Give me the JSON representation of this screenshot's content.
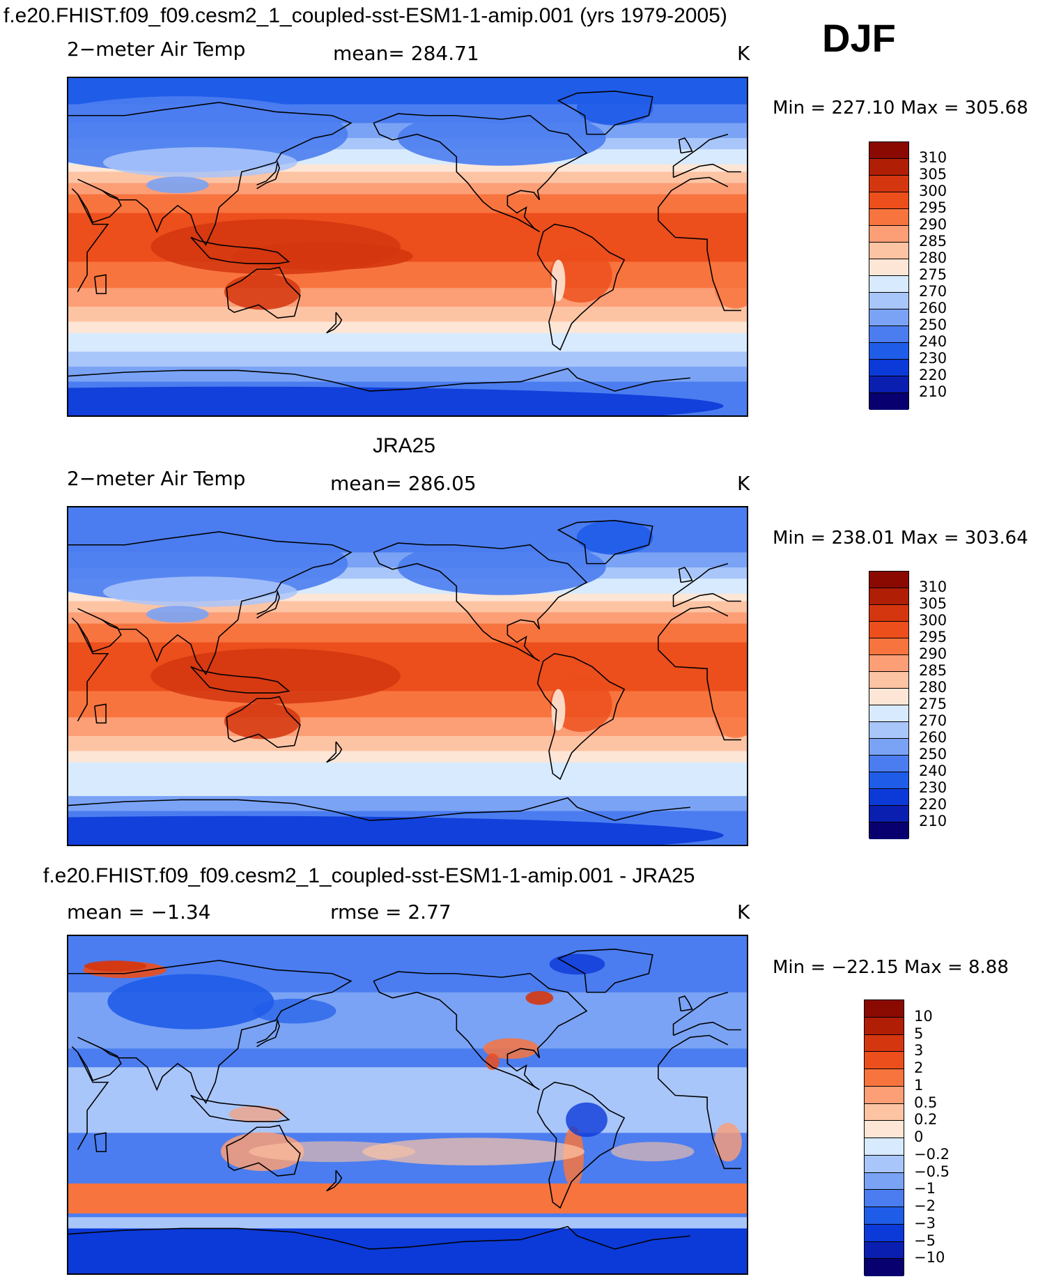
{
  "header": {
    "title": "f.e20.FHIST.f09_f09.cesm2_1_coupled-sst-ESM1-1-amip.001 (yrs 1979-2005)",
    "season": "DJF"
  },
  "colors": {
    "abs_scale": [
      "#08006e",
      "#0a1fb0",
      "#0c3ad8",
      "#1f5ce8",
      "#4b7df0",
      "#7aa3f5",
      "#a9c6fa",
      "#d8eafd",
      "#fde6d6",
      "#fdc4a4",
      "#fc9e76",
      "#f8743e",
      "#ec4e1c",
      "#d4360f",
      "#b01e06",
      "#8a0a02"
    ],
    "diff_scale": [
      "#08006e",
      "#0a1fb0",
      "#0c3ad8",
      "#1f5ce8",
      "#4b7df0",
      "#7aa3f5",
      "#a9c6fa",
      "#d8eafd",
      "#fde6d6",
      "#fdc4a4",
      "#fc9e76",
      "#f8743e",
      "#ec4e1c",
      "#d4360f",
      "#b01e06",
      "#8a0a02"
    ],
    "coast": "#000000"
  },
  "chart_data": [
    {
      "type": "heatmap",
      "title": "",
      "variable": "2−meter Air Temp",
      "stat": "mean=  284.71",
      "units": "K",
      "minmax": "Min  =  227.10  Max  =  305.68",
      "min": 227.1,
      "max": 305.68,
      "levels": [
        "310",
        "305",
        "300",
        "295",
        "290",
        "285",
        "280",
        "275",
        "270",
        "260",
        "250",
        "240",
        "230",
        "220",
        "210"
      ],
      "pattern": "model"
    },
    {
      "type": "heatmap",
      "title": "JRA25",
      "variable": "2−meter Air Temp",
      "stat": "mean=  286.05",
      "units": "K",
      "minmax": "Min  =  238.01  Max  =  303.64",
      "min": 238.01,
      "max": 303.64,
      "levels": [
        "310",
        "305",
        "300",
        "295",
        "290",
        "285",
        "280",
        "275",
        "270",
        "260",
        "250",
        "240",
        "230",
        "220",
        "210"
      ],
      "pattern": "obs"
    },
    {
      "type": "heatmap",
      "title": "f.e20.FHIST.f09_f09.cesm2_1_coupled-sst-ESM1-1-amip.001 - JRA25",
      "stat_mean": "mean  =    −1.34",
      "stat_rmse": "rmse  =     2.77",
      "units": "K",
      "minmax": "Min  =  −22.15  Max  =      8.88",
      "min": -22.15,
      "max": 8.88,
      "levels": [
        "10",
        "5",
        "3",
        "2",
        "1",
        "0.5",
        "0.2",
        "0",
        "−0.2",
        "−0.5",
        "−1",
        "−2",
        "−3",
        "−5",
        "−10"
      ],
      "pattern": "diff"
    }
  ]
}
